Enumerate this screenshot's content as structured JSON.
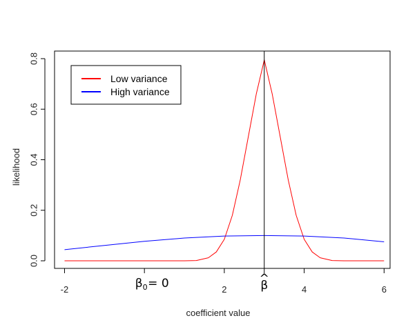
{
  "chart_data": {
    "type": "line",
    "title": "",
    "xlabel": "coefficient value",
    "ylabel": "likelihood",
    "xlim": [
      -2.25,
      6.15
    ],
    "ylim": [
      -0.03,
      0.83
    ],
    "x_ticks": [
      -2,
      2,
      4,
      6
    ],
    "x_tick_labels": [
      "-2",
      "2",
      "4",
      "6"
    ],
    "y_ticks": [
      0.0,
      0.2,
      0.4,
      0.6,
      0.8
    ],
    "y_tick_labels": [
      "0.0",
      "0.2",
      "0.4",
      "0.6",
      "0.8"
    ],
    "legend_position": "top-left",
    "series": [
      {
        "name": "Low variance",
        "color": "#ff0000",
        "x": [
          -2.0,
          1.0,
          1.3,
          1.6,
          1.8,
          2.0,
          2.2,
          2.4,
          2.6,
          2.8,
          3.0,
          3.2,
          3.4,
          3.6,
          3.8,
          4.0,
          4.2,
          4.4,
          4.7,
          5.0,
          6.0
        ],
        "y": [
          0.0,
          0.0,
          0.001,
          0.012,
          0.035,
          0.085,
          0.18,
          0.32,
          0.49,
          0.66,
          0.795,
          0.66,
          0.49,
          0.32,
          0.18,
          0.085,
          0.035,
          0.012,
          0.001,
          0.0,
          0.0
        ]
      },
      {
        "name": "High variance",
        "color": "#0000ff",
        "x": [
          -2.0,
          -1.0,
          0.0,
          1.0,
          2.0,
          3.0,
          4.0,
          5.0,
          6.0
        ],
        "y": [
          0.044,
          0.061,
          0.077,
          0.09,
          0.098,
          0.1,
          0.098,
          0.09,
          0.075
        ]
      }
    ],
    "vline": {
      "x": 3.0,
      "color": "#000000"
    },
    "annotations": [
      {
        "x": 0.0,
        "base": "β",
        "sub": "0",
        "rest": " = 0"
      },
      {
        "x": 3.0,
        "base": "β",
        "accent": "^"
      }
    ]
  }
}
